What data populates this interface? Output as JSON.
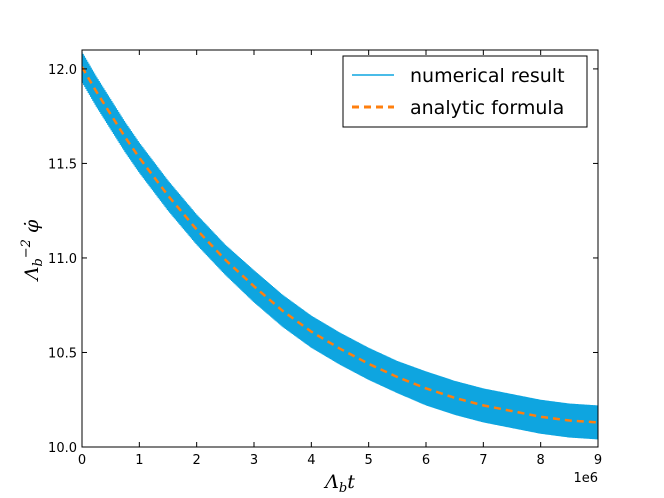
{
  "chart_data": {
    "type": "line",
    "xlabel": "Λ_b t",
    "ylabel": "Λ_b^{-2} φ̇",
    "x_offset_label": "1e6",
    "xlim": [
      0,
      9
    ],
    "ylim": [
      10.0,
      12.1
    ],
    "x_ticks": [
      0,
      1,
      2,
      3,
      4,
      5,
      6,
      7,
      8,
      9
    ],
    "x_tick_labels": [
      "0",
      "1",
      "2",
      "3",
      "4",
      "5",
      "6",
      "7",
      "8",
      "9"
    ],
    "y_ticks": [
      10.0,
      10.5,
      11.0,
      11.5,
      12.0
    ],
    "y_tick_labels": [
      "10.0",
      "10.5",
      "11.0",
      "11.5",
      "12.0"
    ],
    "grid": false,
    "legend_placement": "top-right",
    "series": [
      {
        "name": "numerical result",
        "style": "solid-band",
        "color": "#0ea5e0",
        "x": [
          0,
          0.25,
          0.5,
          0.75,
          1,
          1.5,
          2,
          2.5,
          3,
          3.5,
          4,
          4.5,
          5,
          5.5,
          6,
          6.5,
          7,
          7.5,
          8,
          8.5,
          9
        ],
        "center": [
          12.01,
          11.88,
          11.76,
          11.64,
          11.53,
          11.33,
          11.15,
          10.99,
          10.85,
          10.72,
          10.61,
          10.52,
          10.44,
          10.37,
          10.31,
          10.26,
          10.22,
          10.19,
          10.16,
          10.14,
          10.13
        ],
        "half_width": [
          0.08,
          0.08,
          0.08,
          0.08,
          0.08,
          0.08,
          0.08,
          0.08,
          0.085,
          0.085,
          0.085,
          0.085,
          0.085,
          0.085,
          0.09,
          0.09,
          0.09,
          0.09,
          0.09,
          0.09,
          0.09
        ]
      },
      {
        "name": "analytic formula",
        "style": "dashed",
        "color": "#ff7f0e",
        "x": [
          0,
          0.25,
          0.5,
          0.75,
          1,
          1.5,
          2,
          2.5,
          3,
          3.5,
          4,
          4.5,
          5,
          5.5,
          6,
          6.5,
          7,
          7.5,
          8,
          8.5,
          9
        ],
        "values": [
          12.01,
          11.88,
          11.76,
          11.64,
          11.53,
          11.33,
          11.15,
          10.99,
          10.85,
          10.72,
          10.61,
          10.52,
          10.44,
          10.37,
          10.31,
          10.26,
          10.22,
          10.19,
          10.16,
          10.14,
          10.13
        ]
      }
    ]
  }
}
